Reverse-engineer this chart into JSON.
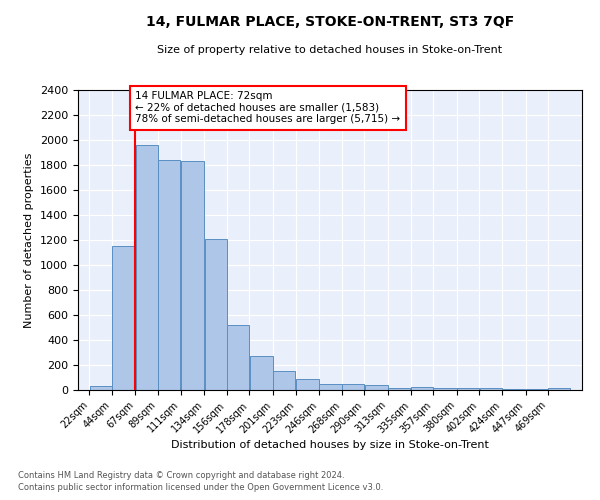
{
  "title": "14, FULMAR PLACE, STOKE-ON-TRENT, ST3 7QF",
  "subtitle": "Size of property relative to detached houses in Stoke-on-Trent",
  "xlabel": "Distribution of detached houses by size in Stoke-on-Trent",
  "ylabel": "Number of detached properties",
  "bin_labels": [
    "22sqm",
    "44sqm",
    "67sqm",
    "89sqm",
    "111sqm",
    "134sqm",
    "156sqm",
    "178sqm",
    "201sqm",
    "223sqm",
    "246sqm",
    "268sqm",
    "290sqm",
    "313sqm",
    "335sqm",
    "357sqm",
    "380sqm",
    "402sqm",
    "424sqm",
    "447sqm",
    "469sqm"
  ],
  "bar_heights": [
    30,
    1150,
    1960,
    1840,
    1830,
    1210,
    520,
    270,
    150,
    85,
    50,
    45,
    40,
    20,
    25,
    20,
    20,
    20,
    5,
    5,
    20
  ],
  "bar_color": "#aec6e8",
  "bar_edge_color": "#5a8fc2",
  "property_line_color": "red",
  "annotation_text": "14 FULMAR PLACE: 72sqm\n← 22% of detached houses are smaller (1,583)\n78% of semi-detached houses are larger (5,715) →",
  "annotation_box_color": "white",
  "annotation_box_edge_color": "red",
  "footnote1": "Contains HM Land Registry data © Crown copyright and database right 2024.",
  "footnote2": "Contains public sector information licensed under the Open Government Licence v3.0.",
  "ylim": [
    0,
    2400
  ],
  "yticks": [
    0,
    200,
    400,
    600,
    800,
    1000,
    1200,
    1400,
    1600,
    1800,
    2000,
    2200,
    2400
  ],
  "bin_edges": [
    22,
    44,
    67,
    89,
    111,
    134,
    156,
    178,
    201,
    223,
    246,
    268,
    290,
    313,
    335,
    357,
    380,
    402,
    424,
    447,
    469,
    491
  ],
  "background_color": "#eaf0fb",
  "grid_color": "white"
}
